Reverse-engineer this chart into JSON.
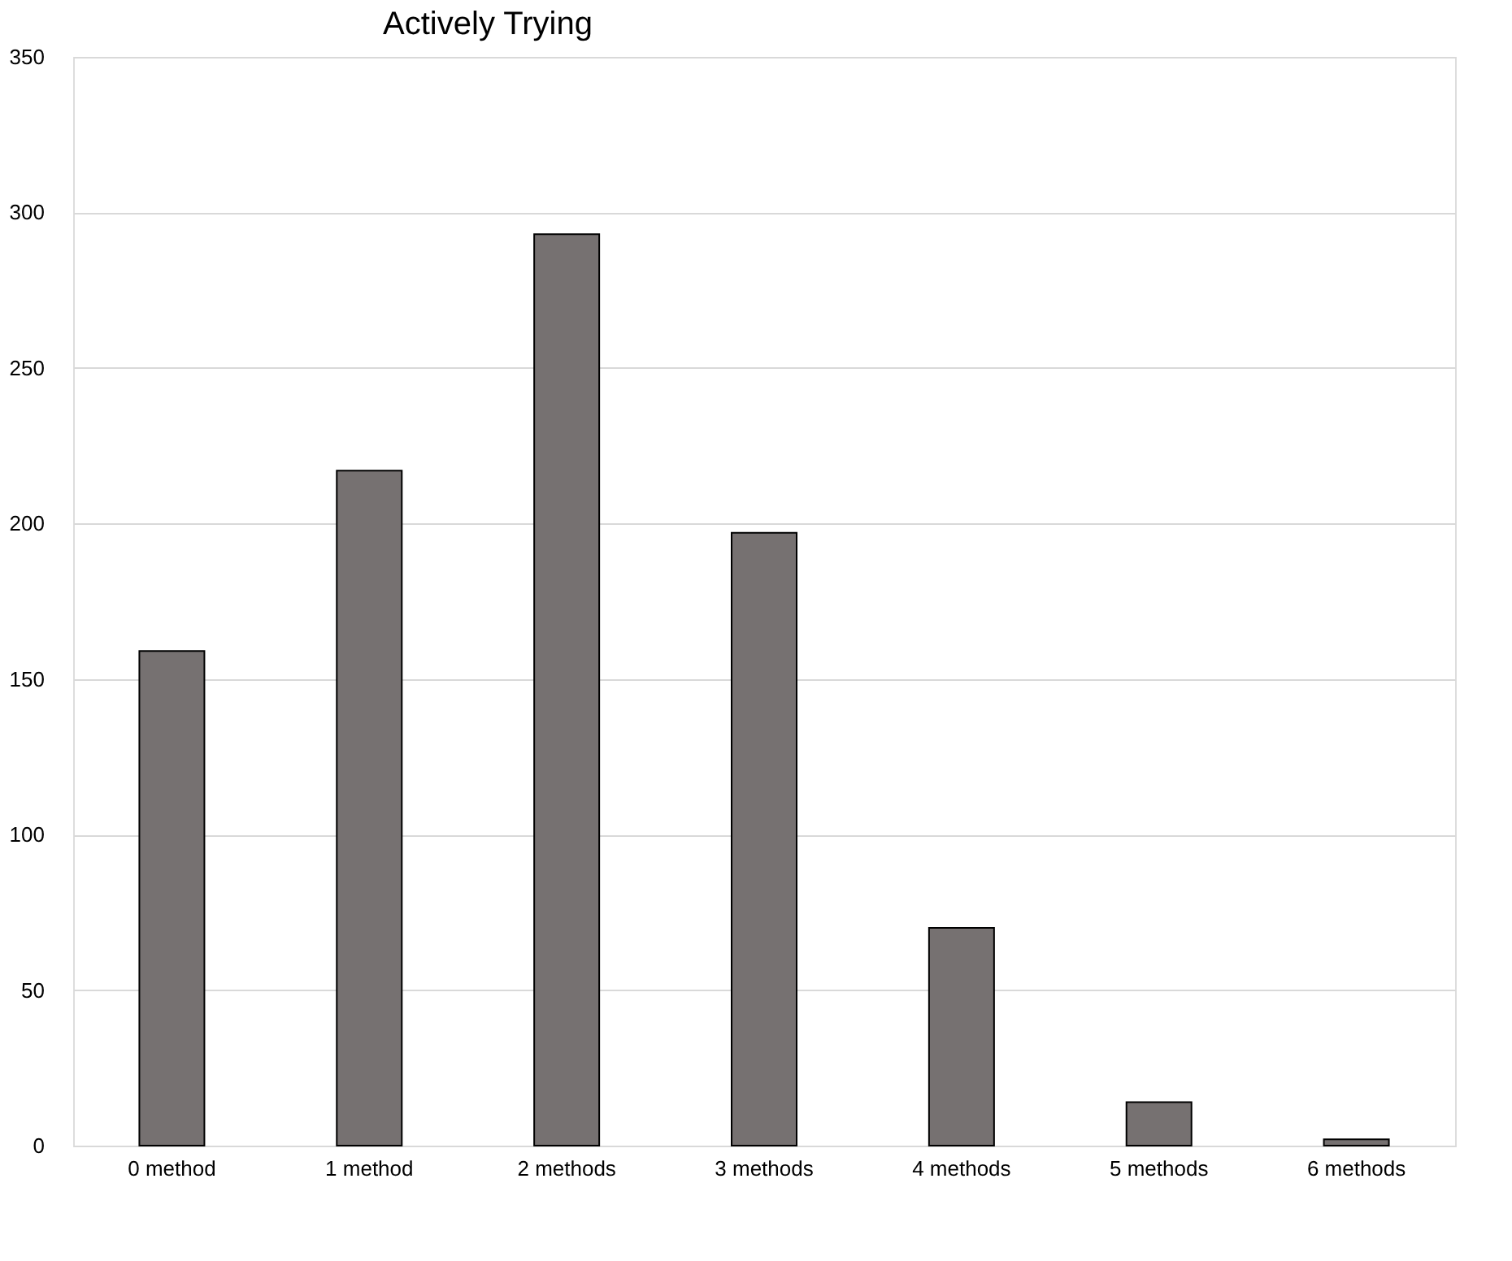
{
  "chart_data": {
    "type": "bar",
    "title": "Actively Trying",
    "categories": [
      "0 method",
      "1 method",
      "2 methods",
      "3 methods",
      "4 methods",
      "5 methods",
      "6 methods"
    ],
    "values": [
      159,
      217,
      293,
      197,
      70,
      14,
      2
    ],
    "color": "#767171",
    "ylim": [
      0,
      350
    ],
    "yticks": [
      0,
      50,
      100,
      150,
      200,
      250,
      300,
      350
    ],
    "grid": "y"
  }
}
